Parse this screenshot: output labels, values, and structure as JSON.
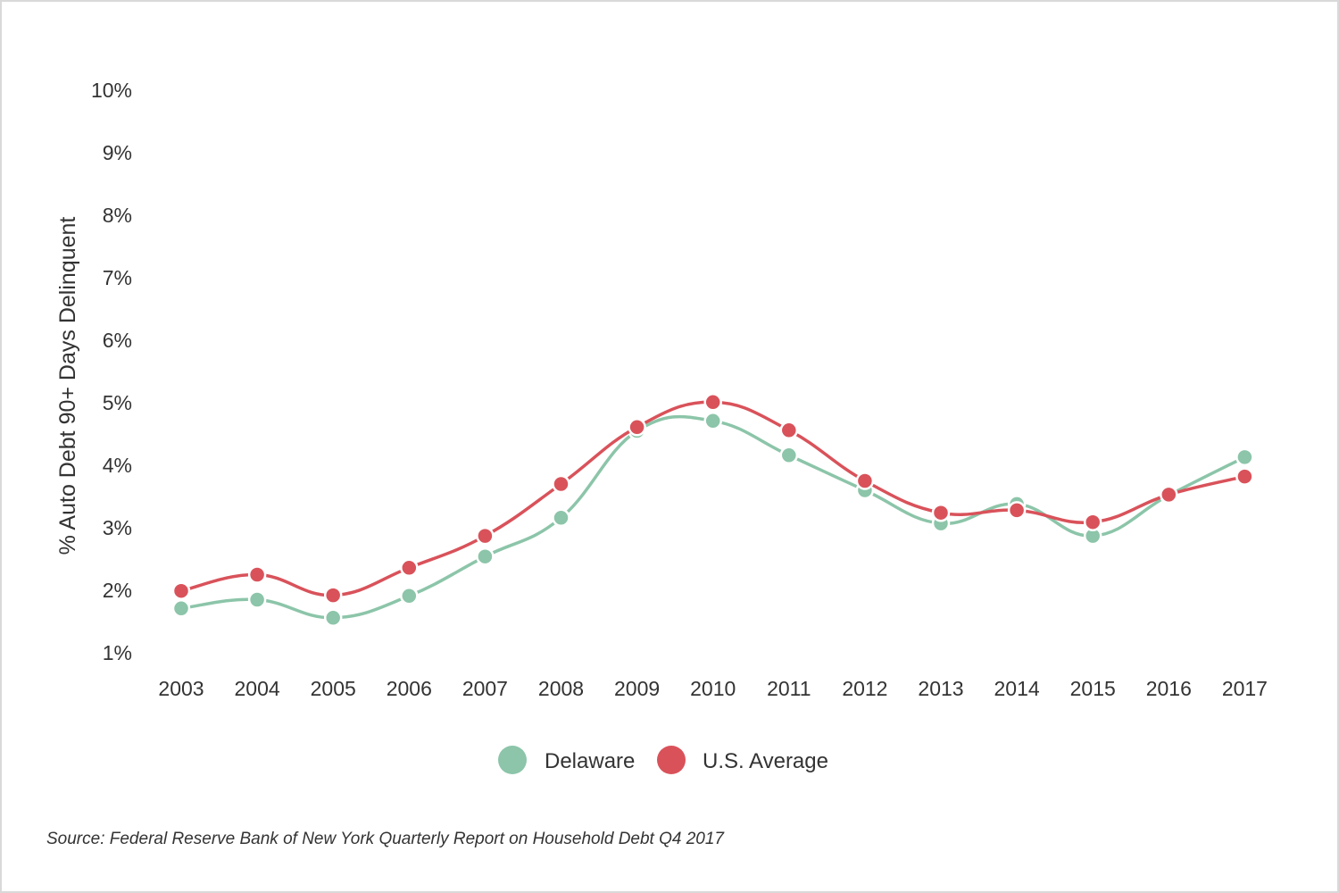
{
  "chart_data": {
    "type": "line",
    "title": "",
    "xlabel": "",
    "ylabel": "% Auto Debt 90+ Days Delinquent",
    "categories": [
      "2003",
      "2004",
      "2005",
      "2006",
      "2007",
      "2008",
      "2009",
      "2010",
      "2011",
      "2012",
      "2013",
      "2014",
      "2015",
      "2016",
      "2017"
    ],
    "y_ticks": [
      "1%",
      "2%",
      "3%",
      "4%",
      "5%",
      "6%",
      "7%",
      "8%",
      "9%",
      "10%"
    ],
    "ylim": [
      1,
      10
    ],
    "grid": false,
    "legend_position": "bottom-center",
    "series": [
      {
        "name": "Delaware",
        "color": "#8cc5a9",
        "values": [
          1.71,
          1.85,
          1.56,
          1.91,
          2.54,
          3.16,
          4.55,
          4.71,
          4.16,
          3.6,
          3.07,
          3.38,
          2.87,
          3.52,
          4.13
        ]
      },
      {
        "name": "U.S. Average",
        "color": "#d9525a",
        "values": [
          1.99,
          2.25,
          1.92,
          2.36,
          2.87,
          3.7,
          4.61,
          5.01,
          4.56,
          3.75,
          3.24,
          3.28,
          3.09,
          3.53,
          3.82
        ]
      }
    ]
  },
  "source_text": "Source: Federal Reserve Bank of New York Quarterly Report on Household Debt Q4 2017"
}
